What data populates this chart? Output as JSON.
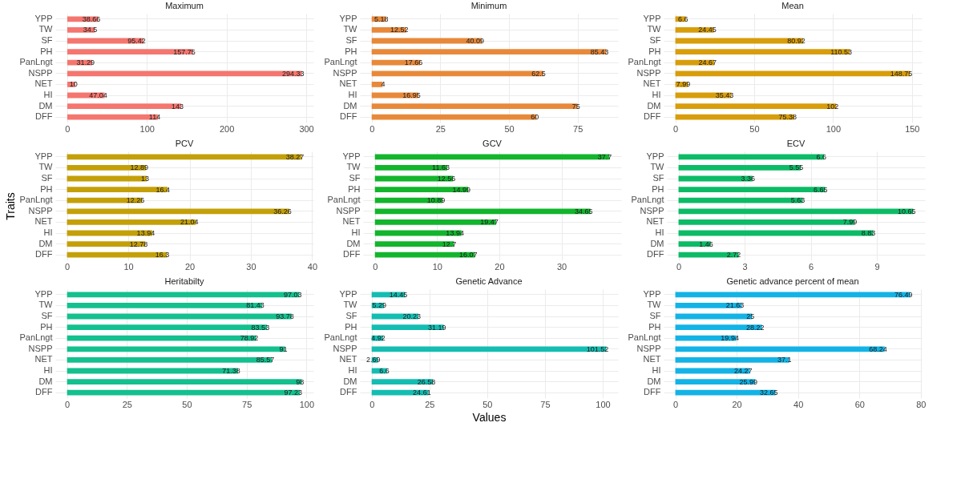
{
  "chart_data": [
    {
      "type": "bar",
      "orientation": "horizontal",
      "title": "Maximum",
      "categories": [
        "YPP",
        "TW",
        "SF",
        "PH",
        "PanLngt",
        "NSPP",
        "NET",
        "HI",
        "DM",
        "DFF"
      ],
      "values": [
        38.66,
        34.5,
        95.42,
        157.75,
        31.29,
        294.33,
        10,
        47.04,
        143,
        114
      ],
      "color": "#f4766f",
      "xlim": [
        -15,
        309
      ],
      "xticks": [
        0,
        100,
        200,
        300
      ],
      "grid": true,
      "data_labels": true
    },
    {
      "type": "bar",
      "orientation": "horizontal",
      "title": "Minimum",
      "categories": [
        "YPP",
        "TW",
        "SF",
        "PH",
        "PanLngt",
        "NSPP",
        "NET",
        "HI",
        "DM",
        "DFF"
      ],
      "values": [
        5.18,
        12.52,
        40.09,
        85.43,
        17.66,
        62.5,
        4,
        16.95,
        75,
        60
      ],
      "color": "#e8893a",
      "xlim": [
        -4.3,
        89.7
      ],
      "xticks": [
        0,
        25,
        50,
        75
      ],
      "grid": true,
      "data_labels": true
    },
    {
      "type": "bar",
      "orientation": "horizontal",
      "title": "Mean",
      "categories": [
        "YPP",
        "TW",
        "SF",
        "PH",
        "PanLngt",
        "NSPP",
        "NET",
        "HI",
        "DM",
        "DFF"
      ],
      "values": [
        6.6,
        24.45,
        80.92,
        110.53,
        24.67,
        148.75,
        7.99,
        35.43,
        102,
        75.38
      ],
      "color": "#d89d0a",
      "xlim": [
        -7.4,
        156.2
      ],
      "xticks": [
        0,
        50,
        100,
        150
      ],
      "grid": true,
      "data_labels": true
    },
    {
      "type": "bar",
      "orientation": "horizontal",
      "title": "PCV",
      "ylabel": "Traits",
      "categories": [
        "YPP",
        "TW",
        "SF",
        "PH",
        "PanLngt",
        "NSPP",
        "NET",
        "HI",
        "DM",
        "DFF"
      ],
      "values": [
        38.27,
        12.89,
        13,
        16.4,
        12.26,
        36.26,
        21.04,
        13.94,
        12.78,
        16.3
      ],
      "color": "#c4a008",
      "xlim": [
        -1.9,
        40.2
      ],
      "xticks": [
        0,
        10,
        20,
        30,
        40
      ],
      "grid": true,
      "data_labels": true
    },
    {
      "type": "bar",
      "orientation": "horizontal",
      "title": "GCV",
      "categories": [
        "YPP",
        "TW",
        "SF",
        "PH",
        "PanLngt",
        "NSPP",
        "NET",
        "HI",
        "DM",
        "DFF"
      ],
      "values": [
        37.7,
        11.63,
        12.56,
        14.99,
        10.89,
        34.65,
        19.47,
        13.94,
        12.7,
        16.07
      ],
      "color": "#12b52c",
      "xlim": [
        -1.9,
        39.6
      ],
      "xticks": [
        0,
        10,
        20,
        30
      ],
      "grid": true,
      "data_labels": true
    },
    {
      "type": "bar",
      "orientation": "horizontal",
      "title": "ECV",
      "categories": [
        "YPP",
        "TW",
        "SF",
        "PH",
        "PanLngt",
        "NSPP",
        "NET",
        "HI",
        "DM",
        "DFF"
      ],
      "values": [
        6.6,
        5.55,
        3.36,
        6.65,
        5.63,
        10.65,
        7.99,
        8.83,
        1.46,
        2.72
      ],
      "color": "#0cbb66",
      "xlim": [
        -0.53,
        11.18
      ],
      "xticks": [
        0,
        3,
        6,
        9
      ],
      "grid": true,
      "data_labels": true
    },
    {
      "type": "bar",
      "orientation": "horizontal",
      "title": "Heritabilty",
      "categories": [
        "YPP",
        "TW",
        "SF",
        "PH",
        "PanLngt",
        "NSPP",
        "NET",
        "HI",
        "DM",
        "DFF"
      ],
      "values": [
        97.03,
        81.43,
        93.78,
        83.53,
        78.92,
        91,
        85.57,
        71.38,
        98,
        97.23
      ],
      "color": "#13c08e",
      "xlim": [
        -4.9,
        102.9
      ],
      "xticks": [
        0,
        25,
        50,
        75,
        100
      ],
      "grid": true,
      "data_labels": true
    },
    {
      "type": "bar",
      "orientation": "horizontal",
      "title": "Genetic Advance",
      "xlabel": "Values",
      "categories": [
        "YPP",
        "TW",
        "SF",
        "PH",
        "PanLngt",
        "NSPP",
        "NET",
        "HI",
        "DM",
        "DFF"
      ],
      "values": [
        14.45,
        5.29,
        20.23,
        31.19,
        4.92,
        101.52,
        2.69,
        6.6,
        26.58,
        24.61
      ],
      "color": "#14bdb2",
      "xlim": [
        -5.1,
        106.6
      ],
      "xticks": [
        0,
        25,
        50,
        75,
        100
      ],
      "grid": true,
      "data_labels": true
    },
    {
      "type": "bar",
      "orientation": "horizontal",
      "title": "Genetic advance percent of mean",
      "categories": [
        "YPP",
        "TW",
        "SF",
        "PH",
        "PanLngt",
        "NSPP",
        "NET",
        "HI",
        "DM",
        "DFF"
      ],
      "values": [
        76.49,
        21.63,
        25,
        28.22,
        19.94,
        68.24,
        37.1,
        24.27,
        25.99,
        32.65
      ],
      "color": "#13b3e6",
      "xlim": [
        -3.8,
        80.3
      ],
      "xticks": [
        0,
        20,
        40,
        60,
        80
      ],
      "grid": true,
      "data_labels": true
    }
  ]
}
